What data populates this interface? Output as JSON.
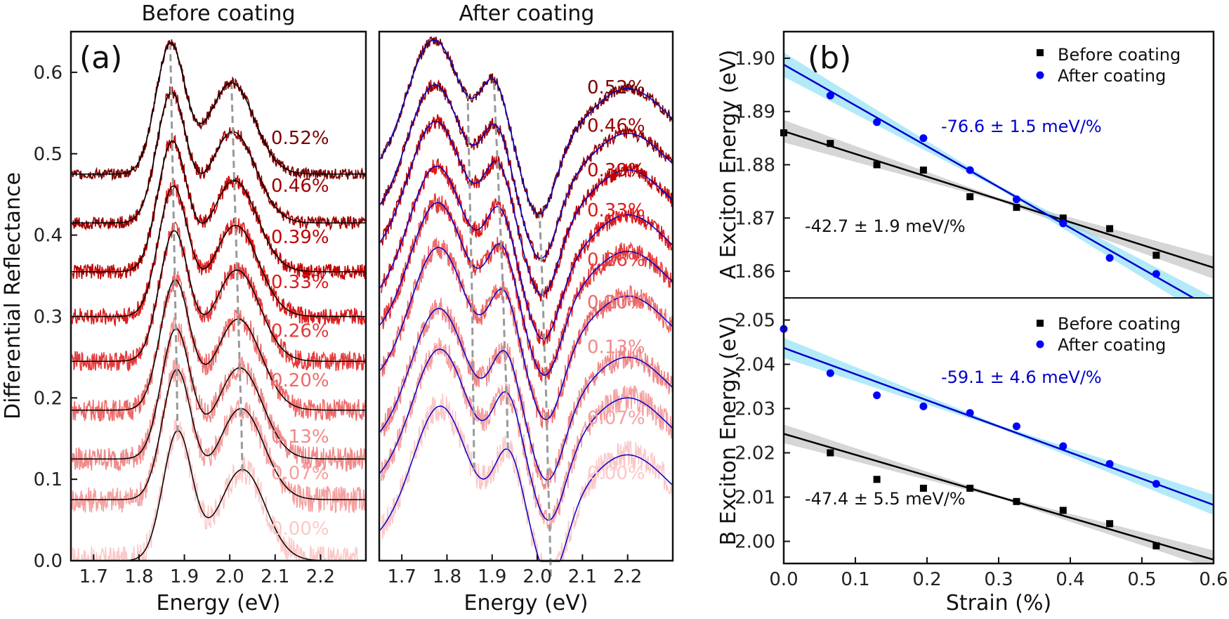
{
  "figure": {
    "panel_a_label": "(a)",
    "panel_b_label": "(b)"
  },
  "colors": {
    "strain_colors": [
      "#fcc8c8",
      "#f5a0a0",
      "#f08a8a",
      "#ee6a6a",
      "#e43a3a",
      "#dc1a1a",
      "#c00000",
      "#9c0000",
      "#7a0000"
    ],
    "before_fit": "#000000",
    "after_fit": "#0000cc",
    "before_band": "#bbbbbb",
    "after_band": "#7fdcf5",
    "dashed_guide": "#999999"
  },
  "chart_data": [
    {
      "id": "a-before",
      "type": "line",
      "title": "Before coating",
      "xlabel": "Energy (eV)",
      "ylabel": "Differential Reflectance",
      "xlim": [
        1.65,
        2.3
      ],
      "ylim": [
        0.0,
        0.65
      ],
      "xticks": [
        "1.7",
        "1.8",
        "1.9",
        "2.0",
        "2.1",
        "2.2"
      ],
      "yticks": [
        "0.0",
        "0.1",
        "0.2",
        "0.3",
        "0.4",
        "0.5",
        "0.6"
      ],
      "strain_labels": [
        "0.00%",
        "0.07%",
        "0.13%",
        "0.20%",
        "0.26%",
        "0.33%",
        "0.39%",
        "0.46%",
        "0.52%"
      ],
      "offsets": [
        0.0,
        0.075,
        0.125,
        0.185,
        0.245,
        0.3,
        0.355,
        0.415,
        0.475
      ],
      "peakA_energies": [
        1.885,
        1.883,
        1.881,
        1.879,
        1.877,
        1.875,
        1.873,
        1.871,
        1.869
      ],
      "peakB_energies": [
        2.028,
        2.025,
        2.022,
        2.019,
        2.016,
        2.013,
        2.01,
        2.007,
        2.004
      ],
      "peakA_amplitude": 0.158,
      "peakB_amplitude": 0.112,
      "label_y_values": [
        0.032,
        0.1,
        0.145,
        0.214,
        0.275,
        0.335,
        0.39,
        0.453,
        0.512
      ]
    },
    {
      "id": "a-after",
      "type": "line",
      "title": "After coating",
      "xlabel": "Energy (eV)",
      "xlim": [
        1.65,
        2.3
      ],
      "ylim": [
        0.0,
        0.65
      ],
      "xticks": [
        "1.7",
        "1.8",
        "1.9",
        "2.0",
        "2.1",
        "2.2"
      ],
      "strain_labels": [
        "0.00%",
        "0.07%",
        "0.13%",
        "0.20%",
        "0.26%",
        "0.33%",
        "0.39%",
        "0.46%",
        "0.52%"
      ],
      "offsets": [
        0.055,
        0.125,
        0.175,
        0.25,
        0.305,
        0.35,
        0.405,
        0.45,
        0.505
      ],
      "peak1_energies": [
        1.785,
        1.784,
        1.782,
        1.781,
        1.779,
        1.777,
        1.775,
        1.773,
        1.771
      ],
      "peak2_energies": [
        1.935,
        1.932,
        1.928,
        1.924,
        1.92,
        1.916,
        1.912,
        1.908,
        1.904
      ],
      "dip_energies": [
        2.03,
        2.027,
        2.024,
        2.021,
        2.018,
        2.015,
        2.012,
        2.009,
        2.005
      ],
      "label_y_values": [
        0.1,
        0.168,
        0.255,
        0.31,
        0.362,
        0.423,
        0.472,
        0.527,
        0.574
      ]
    },
    {
      "id": "b-top",
      "type": "scatter",
      "ylabel": "A Exciton Energy (eV)",
      "xlim": [
        0.0,
        0.6
      ],
      "ylim": [
        1.855,
        1.905
      ],
      "yticks": [
        "1.86",
        "1.87",
        "1.88",
        "1.89",
        "1.90"
      ],
      "series": [
        {
          "name": "Before coating",
          "marker": "square",
          "x": [
            0.0,
            0.065,
            0.13,
            0.195,
            0.26,
            0.325,
            0.39,
            0.455,
            0.52
          ],
          "y": [
            1.886,
            1.884,
            1.88,
            1.879,
            1.874,
            1.872,
            1.87,
            1.868,
            1.863
          ],
          "fit_intercept": 1.8863,
          "fit_slope": -0.0427,
          "annotation": "-42.7 ± 1.9 meV/%"
        },
        {
          "name": "After coating",
          "marker": "circle",
          "x": [
            0.065,
            0.13,
            0.195,
            0.26,
            0.325,
            0.39,
            0.455,
            0.52
          ],
          "y": [
            1.893,
            1.888,
            1.885,
            1.879,
            1.8735,
            1.869,
            1.8625,
            1.8595
          ],
          "fit_intercept": 1.8988,
          "fit_slope": -0.0766,
          "annotation": "-76.6 ± 1.5 meV/%"
        }
      ]
    },
    {
      "id": "b-bottom",
      "type": "scatter",
      "xlabel": "Strain (%)",
      "ylabel": "B Exciton Energy (eV)",
      "xlim": [
        0.0,
        0.6
      ],
      "ylim": [
        1.995,
        2.055
      ],
      "xticks": [
        "0.0",
        "0.1",
        "0.2",
        "0.3",
        "0.4",
        "0.5",
        "0.6"
      ],
      "yticks": [
        "2.00",
        "2.01",
        "2.02",
        "2.03",
        "2.04",
        "2.05"
      ],
      "series": [
        {
          "name": "Before coating",
          "marker": "square",
          "x": [
            0.065,
            0.13,
            0.195,
            0.26,
            0.325,
            0.39,
            0.455,
            0.52
          ],
          "y": [
            2.02,
            2.014,
            2.012,
            2.012,
            2.009,
            2.007,
            2.004,
            1.999
          ],
          "fit_intercept": 2.0243,
          "fit_slope": -0.0474,
          "annotation": "-47.4 ± 5.5 meV/%"
        },
        {
          "name": "After coating",
          "marker": "circle",
          "x": [
            0.0,
            0.065,
            0.13,
            0.195,
            0.26,
            0.325,
            0.39,
            0.455,
            0.52
          ],
          "y": [
            2.048,
            2.038,
            2.033,
            2.0305,
            2.029,
            2.026,
            2.0215,
            2.0175,
            2.013
          ],
          "fit_intercept": 2.0437,
          "fit_slope": -0.0591,
          "annotation": "-59.1 ± 4.6 meV/%"
        }
      ]
    }
  ]
}
